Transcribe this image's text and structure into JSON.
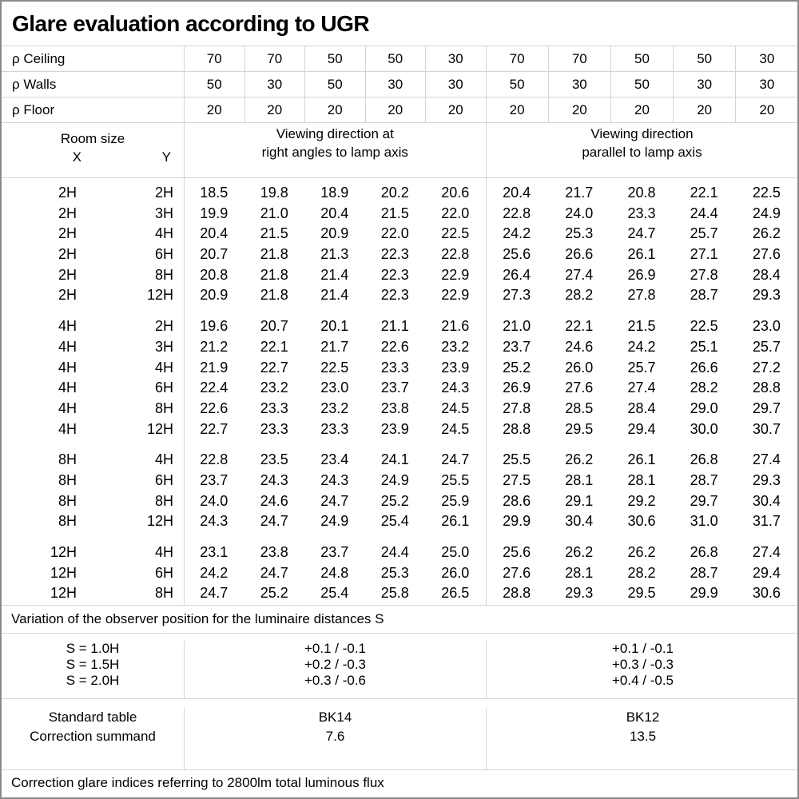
{
  "title": "Glare evaluation according to UGR",
  "reflectance_rows": [
    {
      "label": "ρ Ceiling",
      "values": [
        "70",
        "70",
        "50",
        "50",
        "30",
        "70",
        "70",
        "50",
        "50",
        "30"
      ]
    },
    {
      "label": "ρ Walls",
      "values": [
        "50",
        "30",
        "50",
        "30",
        "30",
        "50",
        "30",
        "50",
        "30",
        "30"
      ]
    },
    {
      "label": "ρ Floor",
      "values": [
        "20",
        "20",
        "20",
        "20",
        "20",
        "20",
        "20",
        "20",
        "20",
        "20"
      ]
    }
  ],
  "header": {
    "room_size": "Room size",
    "x": "X",
    "y": "Y",
    "group1_line1": "Viewing direction at",
    "group1_line2": "right angles to lamp axis",
    "group2_line1": "Viewing direction",
    "group2_line2": "parallel to lamp axis"
  },
  "table": {
    "blocks": [
      {
        "rows": [
          [
            "2H",
            "2H",
            "18.5",
            "19.8",
            "18.9",
            "20.2",
            "20.6",
            "20.4",
            "21.7",
            "20.8",
            "22.1",
            "22.5"
          ],
          [
            "2H",
            "3H",
            "19.9",
            "21.0",
            "20.4",
            "21.5",
            "22.0",
            "22.8",
            "24.0",
            "23.3",
            "24.4",
            "24.9"
          ],
          [
            "2H",
            "4H",
            "20.4",
            "21.5",
            "20.9",
            "22.0",
            "22.5",
            "24.2",
            "25.3",
            "24.7",
            "25.7",
            "26.2"
          ],
          [
            "2H",
            "6H",
            "20.7",
            "21.8",
            "21.3",
            "22.3",
            "22.8",
            "25.6",
            "26.6",
            "26.1",
            "27.1",
            "27.6"
          ],
          [
            "2H",
            "8H",
            "20.8",
            "21.8",
            "21.4",
            "22.3",
            "22.9",
            "26.4",
            "27.4",
            "26.9",
            "27.8",
            "28.4"
          ],
          [
            "2H",
            "12H",
            "20.9",
            "21.8",
            "21.4",
            "22.3",
            "22.9",
            "27.3",
            "28.2",
            "27.8",
            "28.7",
            "29.3"
          ]
        ]
      },
      {
        "rows": [
          [
            "4H",
            "2H",
            "19.6",
            "20.7",
            "20.1",
            "21.1",
            "21.6",
            "21.0",
            "22.1",
            "21.5",
            "22.5",
            "23.0"
          ],
          [
            "4H",
            "3H",
            "21.2",
            "22.1",
            "21.7",
            "22.6",
            "23.2",
            "23.7",
            "24.6",
            "24.2",
            "25.1",
            "25.7"
          ],
          [
            "4H",
            "4H",
            "21.9",
            "22.7",
            "22.5",
            "23.3",
            "23.9",
            "25.2",
            "26.0",
            "25.7",
            "26.6",
            "27.2"
          ],
          [
            "4H",
            "6H",
            "22.4",
            "23.2",
            "23.0",
            "23.7",
            "24.3",
            "26.9",
            "27.6",
            "27.4",
            "28.2",
            "28.8"
          ],
          [
            "4H",
            "8H",
            "22.6",
            "23.3",
            "23.2",
            "23.8",
            "24.5",
            "27.8",
            "28.5",
            "28.4",
            "29.0",
            "29.7"
          ],
          [
            "4H",
            "12H",
            "22.7",
            "23.3",
            "23.3",
            "23.9",
            "24.5",
            "28.8",
            "29.5",
            "29.4",
            "30.0",
            "30.7"
          ]
        ]
      },
      {
        "rows": [
          [
            "8H",
            "4H",
            "22.8",
            "23.5",
            "23.4",
            "24.1",
            "24.7",
            "25.5",
            "26.2",
            "26.1",
            "26.8",
            "27.4"
          ],
          [
            "8H",
            "6H",
            "23.7",
            "24.3",
            "24.3",
            "24.9",
            "25.5",
            "27.5",
            "28.1",
            "28.1",
            "28.7",
            "29.3"
          ],
          [
            "8H",
            "8H",
            "24.0",
            "24.6",
            "24.7",
            "25.2",
            "25.9",
            "28.6",
            "29.1",
            "29.2",
            "29.7",
            "30.4"
          ],
          [
            "8H",
            "12H",
            "24.3",
            "24.7",
            "24.9",
            "25.4",
            "26.1",
            "29.9",
            "30.4",
            "30.6",
            "31.0",
            "31.7"
          ]
        ]
      },
      {
        "rows": [
          [
            "12H",
            "4H",
            "23.1",
            "23.8",
            "23.7",
            "24.4",
            "25.0",
            "25.6",
            "26.2",
            "26.2",
            "26.8",
            "27.4"
          ],
          [
            "12H",
            "6H",
            "24.2",
            "24.7",
            "24.8",
            "25.3",
            "26.0",
            "27.6",
            "28.1",
            "28.2",
            "28.7",
            "29.4"
          ],
          [
            "12H",
            "8H",
            "24.7",
            "25.2",
            "25.4",
            "25.8",
            "26.5",
            "28.8",
            "29.3",
            "29.5",
            "29.9",
            "30.6"
          ]
        ]
      }
    ]
  },
  "variation_note": "Variation of the observer position for the luminaire distances S",
  "s_section": {
    "labels": [
      "S = 1.0H",
      "S = 1.5H",
      "S = 2.0H"
    ],
    "group1": [
      "+0.1 / -0.1",
      "+0.2 / -0.3",
      "+0.3 / -0.6"
    ],
    "group2": [
      "+0.1 / -0.1",
      "+0.3 / -0.3",
      "+0.4 / -0.5"
    ]
  },
  "standard_section": {
    "labels": [
      "Standard table",
      "Correction summand"
    ],
    "group1": [
      "BK14",
      "7.6"
    ],
    "group2": [
      "BK12",
      "13.5"
    ]
  },
  "footer_note": "Correction glare indices referring to 2800lm total luminous flux",
  "colors": {
    "grid_line": "#d4d4d4",
    "outer_border": "#8a8a8a",
    "text": "#000000",
    "background": "#ffffff"
  }
}
